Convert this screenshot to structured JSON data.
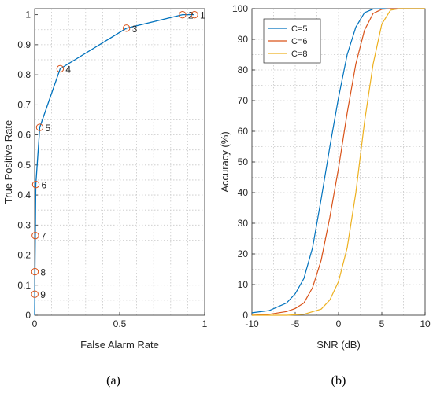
{
  "chart_data": [
    {
      "panel": "a",
      "type": "line",
      "caption": "(a)",
      "xlabel": "False Alarm Rate",
      "ylabel": "True Positive Rate",
      "xlim": [
        0,
        1
      ],
      "ylim": [
        0,
        1.02
      ],
      "xticks": [
        0,
        0.5,
        1
      ],
      "xtick_labels": [
        "0",
        "0.5",
        "1"
      ],
      "yticks": [
        0,
        0.1,
        0.2,
        0.3,
        0.4,
        0.5,
        0.6,
        0.7,
        0.8,
        0.9,
        1
      ],
      "ytick_labels": [
        "0",
        "0.1",
        "0.2",
        "0.3",
        "0.4",
        "0.5",
        "0.6",
        "0.7",
        "0.8",
        "0.9",
        "1"
      ],
      "grid": true,
      "line_color": "#0072BD",
      "marker_color": "#D95319",
      "x": [
        0,
        0.001,
        0.002,
        0.004,
        0.007,
        0.03,
        0.15,
        0.54,
        0.87,
        0.94
      ],
      "y": [
        0,
        0.07,
        0.145,
        0.265,
        0.435,
        0.625,
        0.82,
        0.955,
        1.0,
        1.0
      ],
      "point_labels": [
        "",
        "9",
        "8",
        "7",
        "6",
        "5",
        "4",
        "3",
        "2",
        "1"
      ]
    },
    {
      "panel": "b",
      "type": "line",
      "caption": "(b)",
      "xlabel": "SNR (dB)",
      "ylabel": "Accuracy (%)",
      "xlim": [
        -10,
        10
      ],
      "ylim": [
        0,
        100
      ],
      "xticks": [
        -10,
        -5,
        0,
        5,
        10
      ],
      "xtick_labels": [
        "-10",
        "-5",
        "0",
        "5",
        "10"
      ],
      "yticks": [
        0,
        10,
        20,
        30,
        40,
        50,
        60,
        70,
        80,
        90,
        100
      ],
      "ytick_labels": [
        "0",
        "10",
        "20",
        "30",
        "40",
        "50",
        "60",
        "70",
        "80",
        "90",
        "100"
      ],
      "grid": true,
      "legend_position": "top-left",
      "series": [
        {
          "name": "C=5",
          "color": "#0072BD",
          "x": [
            -10,
            -8,
            -6,
            -5,
            -4,
            -3,
            -2,
            -1,
            0,
            1,
            2,
            3,
            4,
            5,
            10
          ],
          "y": [
            0.8,
            1.5,
            4,
            7,
            12,
            22,
            38,
            55,
            71,
            85,
            94,
            98.7,
            99.9,
            100,
            100
          ]
        },
        {
          "name": "C=6",
          "color": "#D95319",
          "x": [
            -10,
            -8,
            -6,
            -5,
            -4,
            -3,
            -2,
            -1,
            0,
            1,
            2,
            3,
            4,
            5,
            6,
            10
          ],
          "y": [
            0,
            0.3,
            1.2,
            2.2,
            4,
            9,
            18,
            32,
            48,
            66,
            82,
            93,
            98.5,
            99.8,
            100,
            100
          ]
        },
        {
          "name": "C=8",
          "color": "#EDB120",
          "x": [
            -10,
            -6,
            -4,
            -2,
            -1,
            0,
            1,
            2,
            3,
            4,
            5,
            6,
            7,
            10
          ],
          "y": [
            0,
            0,
            0.3,
            2,
            5,
            11,
            22,
            40,
            63,
            82,
            95,
            99.5,
            100,
            100
          ]
        }
      ]
    }
  ]
}
